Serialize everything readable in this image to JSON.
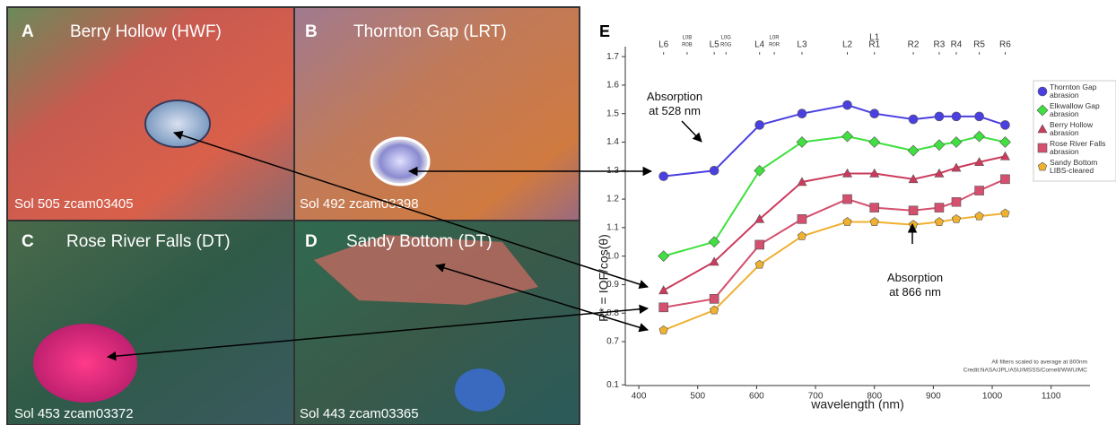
{
  "panels": [
    {
      "letter": "A",
      "title": "Berry Hollow (HWF)",
      "sol": "Sol 505 zcam03405"
    },
    {
      "letter": "B",
      "title": "Thornton Gap (LRT)",
      "sol": "Sol 492 zcam03398"
    },
    {
      "letter": "C",
      "title": "Rose River Falls (DT)",
      "sol": "Sol 453 zcam03372"
    },
    {
      "letter": "D",
      "title": "Sandy Bottom (DT)",
      "sol": "Sol 443 zcam03365"
    }
  ],
  "chart_data": {
    "type": "line",
    "panel_letter": "E",
    "x_label": "wavelength (nm)",
    "y_label": "R* = IOF/cos(θ)",
    "xlim": [
      377,
      1166
    ],
    "ylim": [
      0.09,
      1.735
    ],
    "xticks": [
      400,
      500,
      600,
      700,
      800,
      900,
      1000,
      1100
    ],
    "yticks": [
      0.1,
      0.7,
      0.8,
      0.9,
      {
        "value": 1,
        "label": "1.0"
      },
      1.1,
      1.2,
      1.3,
      1.4,
      1.5,
      1.6,
      1.7
    ],
    "filter_ticks": [
      {
        "value": 442,
        "label": [
          "L6"
        ]
      },
      {
        "value": 482,
        "label": [
          "L0B",
          "R0B"
        ]
      },
      {
        "value": 528,
        "label": [
          "L5"
        ]
      },
      {
        "value": 548,
        "label": [
          "L0G",
          "R0G"
        ]
      },
      {
        "value": 605,
        "label": [
          "L4"
        ]
      },
      {
        "value": 630,
        "label": [
          "L0R",
          "R0R"
        ]
      },
      {
        "value": 677,
        "label": [
          "L3"
        ]
      },
      {
        "value": 754,
        "label": [
          "L2"
        ]
      },
      {
        "value": 800,
        "label": [
          "L1",
          "R1"
        ]
      },
      {
        "value": 866,
        "label": [
          "R2"
        ]
      },
      {
        "value": 910,
        "label": [
          "R3"
        ]
      },
      {
        "value": 939,
        "label": [
          "R4"
        ]
      },
      {
        "value": 978,
        "label": [
          "R5"
        ]
      },
      {
        "value": 1022,
        "label": [
          "R6"
        ]
      }
    ],
    "x": [
      442,
      528,
      605,
      677,
      754,
      800,
      866,
      910,
      939,
      978,
      1022
    ],
    "series": [
      {
        "name": "Thornton Gap abrasion",
        "color": "#4a3fe0",
        "marker": "circle",
        "values": [
          1.28,
          1.3,
          1.46,
          1.5,
          1.53,
          1.5,
          1.48,
          1.49,
          1.49,
          1.49,
          1.46
        ]
      },
      {
        "name": "Elkwallow Gap abrasion",
        "color": "#3fe03f",
        "marker": "diamond",
        "values": [
          1.0,
          1.05,
          1.3,
          1.4,
          1.42,
          1.4,
          1.37,
          1.39,
          1.4,
          1.42,
          1.4
        ]
      },
      {
        "name": "Berry Hollow abrasion",
        "color": "#cc3a5c",
        "marker": "triangle",
        "values": [
          0.88,
          0.98,
          1.13,
          1.26,
          1.29,
          1.29,
          1.27,
          1.29,
          1.31,
          1.33,
          1.35
        ]
      },
      {
        "name": "Rose River Falls abrasion",
        "color": "#d4506e",
        "marker": "square",
        "values": [
          0.82,
          0.85,
          1.04,
          1.13,
          1.2,
          1.17,
          1.16,
          1.17,
          1.19,
          1.23,
          1.27
        ]
      },
      {
        "name": "Sandy Bottom LIBS-cleared",
        "color": "#f0b030",
        "marker": "pentagon",
        "values": [
          0.74,
          0.81,
          0.97,
          1.07,
          1.12,
          1.12,
          1.11,
          1.12,
          1.13,
          1.14,
          1.15
        ]
      }
    ],
    "annotations": [
      "Absorption at 528 nm",
      "Absorption at 866 nm"
    ],
    "footnotes": [
      "All filters scaled to average at 800nm",
      "Credit:NASA/JPL/ASU/MSSS/Cornell/WWU/MC"
    ]
  }
}
